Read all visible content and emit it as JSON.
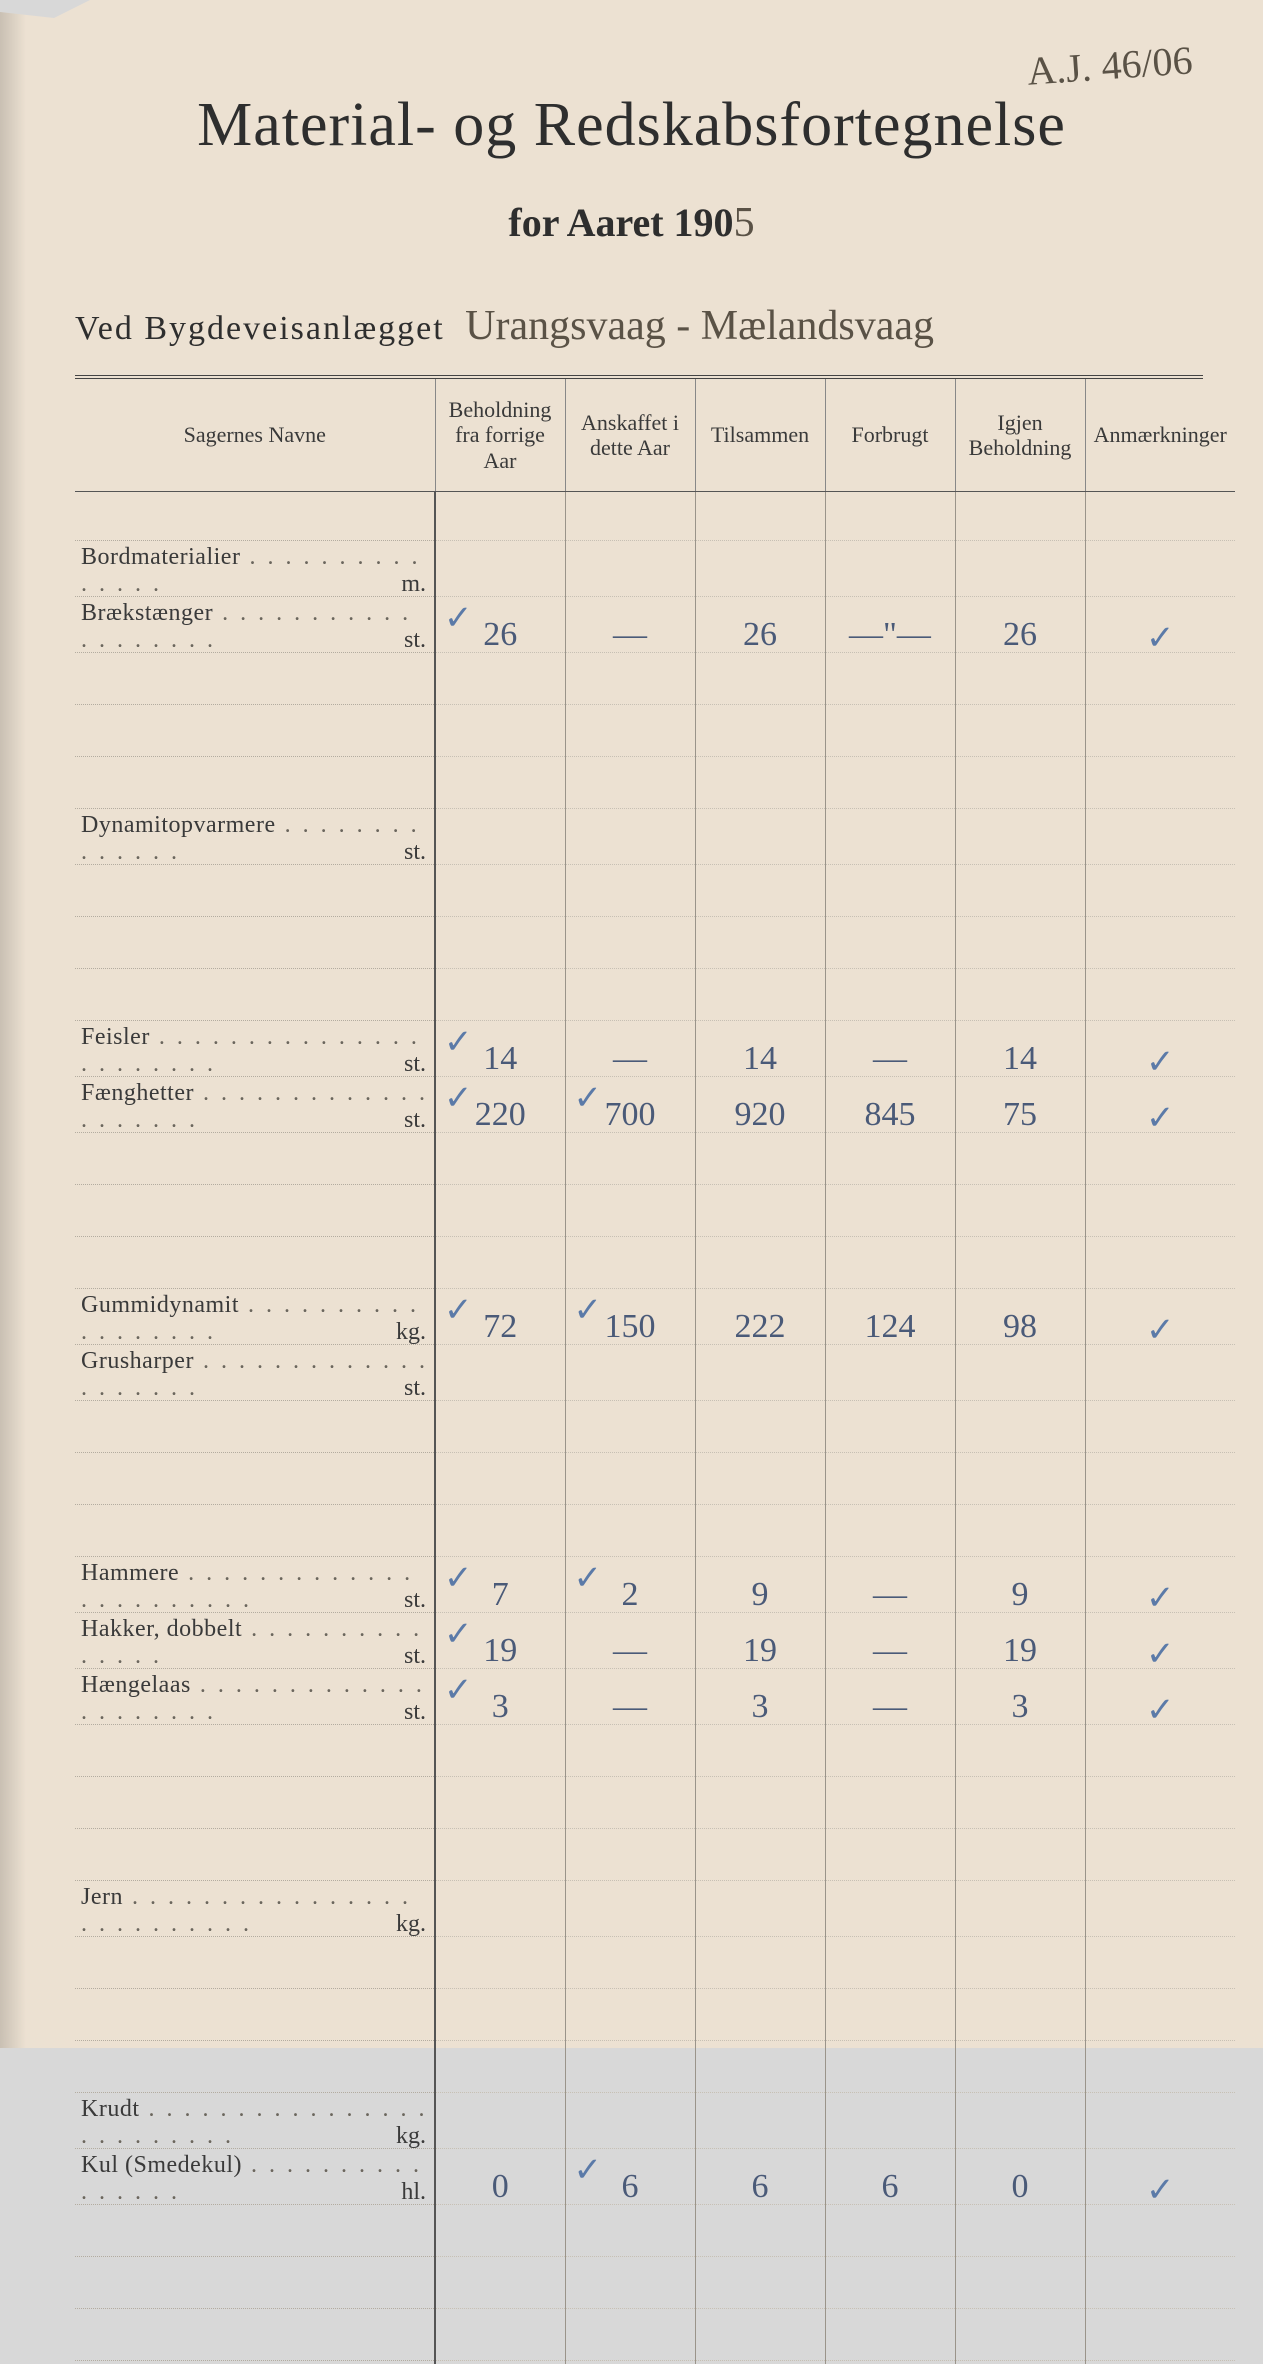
{
  "header": {
    "corner_note": "A.J. 46/06",
    "title": "Material- og Redskabsfortegnelse",
    "subtitle_prefix": "for Aaret 190",
    "subtitle_year_hw": "5",
    "project_prefix": "Ved  Bygdeveisanlægget",
    "project_hw": "Urangsvaag - Mælandsvaag"
  },
  "columns": [
    "Sagernes Navne",
    "Beholdning fra forrige Aar",
    "Anskaffet i dette Aar",
    "Tilsammen",
    "Forbrugt",
    "Igjen Beholdning",
    "Anmærkninger"
  ],
  "rows": [
    {
      "blank": true
    },
    {
      "label": "Bordmaterialier",
      "unit": "m.",
      "c1": "",
      "c2": "",
      "c3": "",
      "c4": "",
      "c5": "",
      "anm": ""
    },
    {
      "label": "Brækstænger",
      "unit": "st.",
      "tick1": true,
      "c1": "26",
      "c2": "—",
      "c3": "26",
      "c4": "—\"—",
      "c5": "26",
      "anm": "✓"
    },
    {
      "blank": true
    },
    {
      "blank": true
    },
    {
      "blank": true
    },
    {
      "label": "Dynamitopvarmere",
      "unit": "st.",
      "c1": "",
      "c2": "",
      "c3": "",
      "c4": "",
      "c5": "",
      "anm": ""
    },
    {
      "blank": true
    },
    {
      "blank": true
    },
    {
      "blank": true
    },
    {
      "label": "Feisler",
      "unit": "st.",
      "tick1": true,
      "c1": "14",
      "c2": "—",
      "c3": "14",
      "c4": "—",
      "c5": "14",
      "anm": "✓"
    },
    {
      "label": "Fænghetter",
      "unit": "st.",
      "tick1": true,
      "c1": "220",
      "tick2": true,
      "c2": "700",
      "c3": "920",
      "c4": "845",
      "c5": "75",
      "anm": "✓"
    },
    {
      "blank": true
    },
    {
      "blank": true
    },
    {
      "blank": true
    },
    {
      "label": "Gummidynamit",
      "unit": "kg.",
      "tick1": true,
      "c1": "72",
      "tick2": true,
      "c2": "150",
      "c3": "222",
      "c4": "124",
      "c5": "98",
      "anm": "✓"
    },
    {
      "label": "Grusharper",
      "unit": "st.",
      "c1": "",
      "c2": "",
      "c3": "",
      "c4": "",
      "c5": "",
      "anm": ""
    },
    {
      "blank": true
    },
    {
      "blank": true
    },
    {
      "blank": true
    },
    {
      "label": "Hammere",
      "unit": "st.",
      "tick1": true,
      "c1": "7",
      "tick2": true,
      "c2": "2",
      "c3": "9",
      "c4": "—",
      "c5": "9",
      "anm": "✓"
    },
    {
      "label": "Hakker, dobbelt",
      "unit": "st.",
      "tick1": true,
      "c1": "19",
      "c2": "—",
      "c3": "19",
      "c4": "—",
      "c5": "19",
      "anm": "✓"
    },
    {
      "label": "Hængelaas",
      "unit": "st.",
      "tick1": true,
      "c1": "3",
      "c2": "—",
      "c3": "3",
      "c4": "—",
      "c5": "3",
      "anm": "✓"
    },
    {
      "blank": true
    },
    {
      "blank": true
    },
    {
      "blank": true
    },
    {
      "label": "Jern",
      "unit": "kg.",
      "c1": "",
      "c2": "",
      "c3": "",
      "c4": "",
      "c5": "",
      "anm": ""
    },
    {
      "blank": true
    },
    {
      "blank": true
    },
    {
      "blank": true
    },
    {
      "label": "Krudt",
      "unit": "kg.",
      "c1": "",
      "c2": "",
      "c3": "",
      "c4": "",
      "c5": "",
      "anm": ""
    },
    {
      "label": "Kul (Smedekul)",
      "unit": "hl.",
      "c1": "0",
      "tick2": true,
      "c2": "6",
      "c3": "6",
      "c4": "6",
      "c5": "0",
      "anm": "✓"
    },
    {
      "blank": true
    },
    {
      "blank": true
    },
    {
      "blank": true
    }
  ],
  "style": {
    "page_bg": "#ece1d2",
    "ink": "#3a3a3a",
    "hw_color": "#4a5a78",
    "title_fontsize": 62,
    "subtitle_fontsize": 40,
    "body_fontsize": 24,
    "hw_fontsize": 34
  }
}
